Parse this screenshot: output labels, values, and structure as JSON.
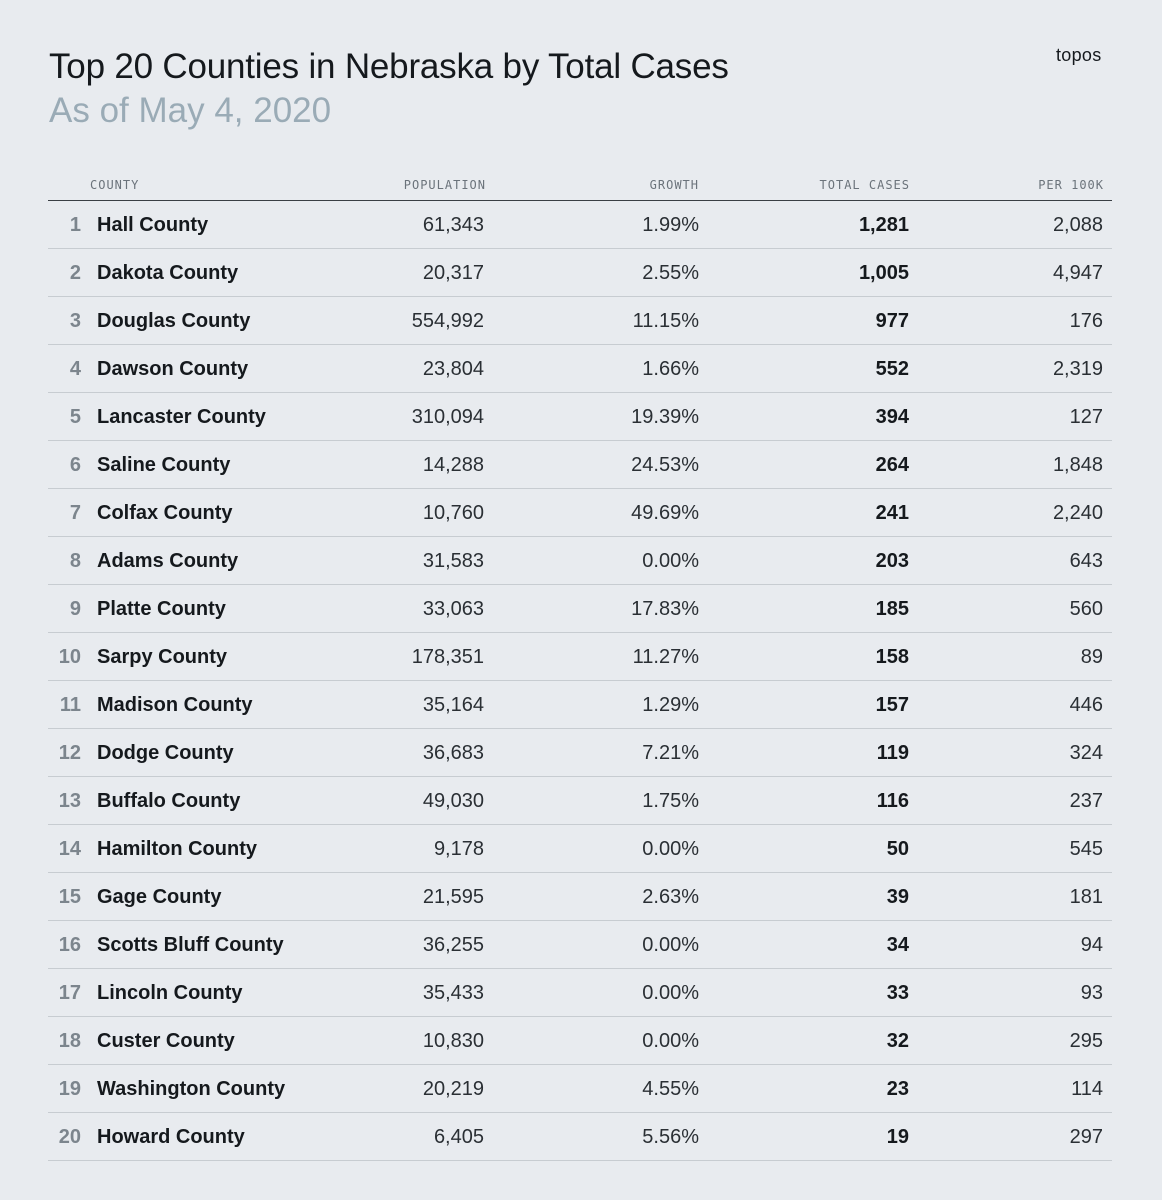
{
  "header": {
    "title": "Top 20 Counties in Nebraska by Total Cases",
    "subtitle": "As of May 4, 2020",
    "brand": "topos"
  },
  "chart_data": {
    "type": "table",
    "title": "Top 20 Counties in Nebraska by Total Cases",
    "subtitle": "As of May 4, 2020",
    "columns": [
      "",
      "COUNTY",
      "POPULATION",
      "GROWTH",
      "TOTAL CASES",
      "PER 100K"
    ],
    "rows": [
      {
        "rank": "1",
        "county": "Hall County",
        "population": "61,343",
        "growth": "1.99%",
        "total_cases": "1,281",
        "per_100k": "2,088"
      },
      {
        "rank": "2",
        "county": "Dakota County",
        "population": "20,317",
        "growth": "2.55%",
        "total_cases": "1,005",
        "per_100k": "4,947"
      },
      {
        "rank": "3",
        "county": "Douglas County",
        "population": "554,992",
        "growth": "11.15%",
        "total_cases": "977",
        "per_100k": "176"
      },
      {
        "rank": "4",
        "county": "Dawson County",
        "population": "23,804",
        "growth": "1.66%",
        "total_cases": "552",
        "per_100k": "2,319"
      },
      {
        "rank": "5",
        "county": "Lancaster County",
        "population": "310,094",
        "growth": "19.39%",
        "total_cases": "394",
        "per_100k": "127"
      },
      {
        "rank": "6",
        "county": "Saline County",
        "population": "14,288",
        "growth": "24.53%",
        "total_cases": "264",
        "per_100k": "1,848"
      },
      {
        "rank": "7",
        "county": "Colfax County",
        "population": "10,760",
        "growth": "49.69%",
        "total_cases": "241",
        "per_100k": "2,240"
      },
      {
        "rank": "8",
        "county": "Adams County",
        "population": "31,583",
        "growth": "0.00%",
        "total_cases": "203",
        "per_100k": "643"
      },
      {
        "rank": "9",
        "county": "Platte County",
        "population": "33,063",
        "growth": "17.83%",
        "total_cases": "185",
        "per_100k": "560"
      },
      {
        "rank": "10",
        "county": "Sarpy County",
        "population": "178,351",
        "growth": "11.27%",
        "total_cases": "158",
        "per_100k": "89"
      },
      {
        "rank": "11",
        "county": "Madison County",
        "population": "35,164",
        "growth": "1.29%",
        "total_cases": "157",
        "per_100k": "446"
      },
      {
        "rank": "12",
        "county": "Dodge County",
        "population": "36,683",
        "growth": "7.21%",
        "total_cases": "119",
        "per_100k": "324"
      },
      {
        "rank": "13",
        "county": "Buffalo County",
        "population": "49,030",
        "growth": "1.75%",
        "total_cases": "116",
        "per_100k": "237"
      },
      {
        "rank": "14",
        "county": "Hamilton County",
        "population": "9,178",
        "growth": "0.00%",
        "total_cases": "50",
        "per_100k": "545"
      },
      {
        "rank": "15",
        "county": "Gage County",
        "population": "21,595",
        "growth": "2.63%",
        "total_cases": "39",
        "per_100k": "181"
      },
      {
        "rank": "16",
        "county": "Scotts Bluff County",
        "population": "36,255",
        "growth": "0.00%",
        "total_cases": "34",
        "per_100k": "94"
      },
      {
        "rank": "17",
        "county": "Lincoln County",
        "population": "35,433",
        "growth": "0.00%",
        "total_cases": "33",
        "per_100k": "93"
      },
      {
        "rank": "18",
        "county": "Custer County",
        "population": "10,830",
        "growth": "0.00%",
        "total_cases": "32",
        "per_100k": "295"
      },
      {
        "rank": "19",
        "county": "Washington County",
        "population": "20,219",
        "growth": "4.55%",
        "total_cases": "23",
        "per_100k": "114"
      },
      {
        "rank": "20",
        "county": "Howard County",
        "population": "6,405",
        "growth": "5.56%",
        "total_cases": "19",
        "per_100k": "297"
      }
    ]
  }
}
